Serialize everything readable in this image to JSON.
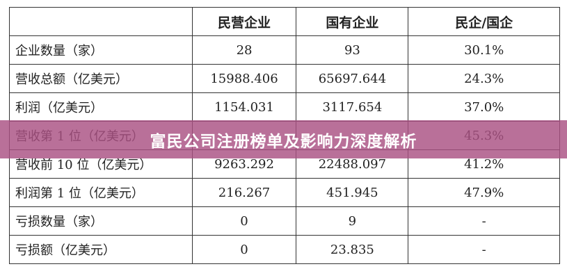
{
  "table": {
    "headers": [
      "",
      "民营企业",
      "国有企业",
      "民企/国企"
    ],
    "rows": [
      [
        "企业数量（家）",
        "28",
        "93",
        "30.1%"
      ],
      [
        "营收总额（亿美元）",
        "15988.406",
        "65697.644",
        "24.3%"
      ],
      [
        "利润（亿美元）",
        "1154.031",
        "3117.654",
        "37.0%"
      ],
      [
        "营收第 1 位（亿美元）",
        "",
        "",
        "45.3%"
      ],
      [
        "营收前 10 位（亿美元）",
        "9263.292",
        "22488.097",
        "41.2%"
      ],
      [
        "利润第 1 位（亿美元）",
        "216.267",
        "451.945",
        "47.9%"
      ],
      [
        "亏损数量（家）",
        "0",
        "9",
        "-"
      ],
      [
        "亏损额（亿美元）",
        "0",
        "23.835",
        "-"
      ]
    ]
  },
  "banner": {
    "title": "富民公司注册榜单及影响力深度解析",
    "color": "#b5608f"
  }
}
